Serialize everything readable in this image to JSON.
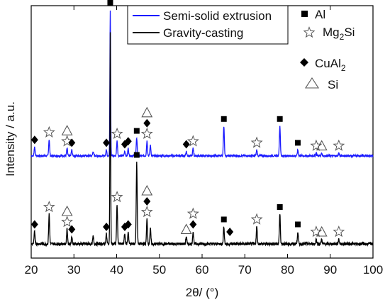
{
  "chart_data": {
    "type": "line",
    "xlabel": "2θ/ (°)",
    "ylabel": "Intensity / a.u.",
    "xlim": [
      20,
      100
    ],
    "xticks": [
      20,
      30,
      40,
      50,
      60,
      70,
      80,
      90,
      100
    ],
    "y_tick_labels": false,
    "grid": false,
    "legend": {
      "placement": "top-center",
      "entries": [
        {
          "name": "Semi-solid extrusion",
          "color": "#1a1aff"
        },
        {
          "name": "Gravity-casting",
          "color": "#000000"
        }
      ]
    },
    "phase_legend": {
      "placement": "top-right",
      "entries": [
        {
          "symbol": "filled-square",
          "label": "Al"
        },
        {
          "symbol": "open-star",
          "label": "Mg",
          "sub": "2",
          "label_after": "Si"
        },
        {
          "symbol": "filled-diamond",
          "label": "CuAl",
          "sub": "2",
          "label_after": ""
        },
        {
          "symbol": "open-triangle",
          "label": "Si"
        }
      ]
    },
    "series": [
      {
        "name": "Semi-solid extrusion",
        "color": "#1a1aff",
        "baseline": 0.02,
        "peaks": [
          {
            "x": 20.8,
            "h": 0.06
          },
          {
            "x": 24.2,
            "h": 0.11
          },
          {
            "x": 28.4,
            "h": 0.05
          },
          {
            "x": 29.5,
            "h": 0.04
          },
          {
            "x": 34.5,
            "h": 0.03
          },
          {
            "x": 37.6,
            "h": 0.04
          },
          {
            "x": 38.5,
            "h": 0.98
          },
          {
            "x": 40.1,
            "h": 0.1
          },
          {
            "x": 41.9,
            "h": 0.03
          },
          {
            "x": 42.7,
            "h": 0.05
          },
          {
            "x": 44.7,
            "h": 0.12
          },
          {
            "x": 47.1,
            "h": 0.1
          },
          {
            "x": 47.9,
            "h": 0.07
          },
          {
            "x": 56.3,
            "h": 0.03
          },
          {
            "x": 57.9,
            "h": 0.05
          },
          {
            "x": 65.1,
            "h": 0.2
          },
          {
            "x": 72.8,
            "h": 0.04
          },
          {
            "x": 78.2,
            "h": 0.2
          },
          {
            "x": 82.4,
            "h": 0.04
          },
          {
            "x": 86.7,
            "h": 0.02
          },
          {
            "x": 88.0,
            "h": 0.02
          },
          {
            "x": 92.0,
            "h": 0.02
          }
        ]
      },
      {
        "name": "Gravity-casting",
        "color": "#000000",
        "baseline": 0.02,
        "peaks": [
          {
            "x": 20.8,
            "h": 0.05
          },
          {
            "x": 24.2,
            "h": 0.12
          },
          {
            "x": 28.4,
            "h": 0.06
          },
          {
            "x": 29.5,
            "h": 0.03
          },
          {
            "x": 34.5,
            "h": 0.03
          },
          {
            "x": 37.6,
            "h": 0.04
          },
          {
            "x": 38.5,
            "h": 0.85
          },
          {
            "x": 40.1,
            "h": 0.16
          },
          {
            "x": 41.9,
            "h": 0.04
          },
          {
            "x": 42.7,
            "h": 0.05
          },
          {
            "x": 44.7,
            "h": 0.33
          },
          {
            "x": 47.1,
            "h": 0.1
          },
          {
            "x": 47.9,
            "h": 0.06
          },
          {
            "x": 56.3,
            "h": 0.03
          },
          {
            "x": 57.9,
            "h": 0.05
          },
          {
            "x": 65.1,
            "h": 0.07
          },
          {
            "x": 72.8,
            "h": 0.07
          },
          {
            "x": 78.2,
            "h": 0.12
          },
          {
            "x": 82.4,
            "h": 0.05
          },
          {
            "x": 86.7,
            "h": 0.02
          },
          {
            "x": 88.0,
            "h": 0.02
          },
          {
            "x": 92.0,
            "h": 0.02
          }
        ]
      }
    ],
    "peak_markers": [
      {
        "series": "Semi-solid extrusion",
        "x": 20.8,
        "symbols": [
          "filled-diamond"
        ]
      },
      {
        "series": "Semi-solid extrusion",
        "x": 24.2,
        "symbols": [
          "open-star"
        ]
      },
      {
        "series": "Semi-solid extrusion",
        "x": 28.4,
        "symbols": [
          "open-star",
          "open-triangle"
        ]
      },
      {
        "series": "Semi-solid extrusion",
        "x": 29.5,
        "symbols": [
          "filled-diamond"
        ]
      },
      {
        "series": "Semi-solid extrusion",
        "x": 37.6,
        "symbols": [
          "filled-diamond"
        ]
      },
      {
        "series": "Semi-solid extrusion",
        "x": 38.5,
        "symbols": [
          "filled-square"
        ]
      },
      {
        "series": "Semi-solid extrusion",
        "x": 40.1,
        "symbols": [
          "open-star"
        ]
      },
      {
        "series": "Semi-solid extrusion",
        "x": 41.9,
        "symbols": [
          "filled-diamond"
        ]
      },
      {
        "series": "Semi-solid extrusion",
        "x": 42.7,
        "symbols": [
          "filled-diamond"
        ]
      },
      {
        "series": "Semi-solid extrusion",
        "x": 44.7,
        "symbols": [
          "filled-square"
        ]
      },
      {
        "series": "Semi-solid extrusion",
        "x": 47.1,
        "symbols": [
          "open-star",
          "filled-diamond",
          "open-triangle"
        ]
      },
      {
        "series": "Semi-solid extrusion",
        "x": 56.3,
        "symbols": [
          "filled-diamond"
        ]
      },
      {
        "series": "Semi-solid extrusion",
        "x": 57.9,
        "symbols": [
          "open-star"
        ]
      },
      {
        "series": "Semi-solid extrusion",
        "x": 65.1,
        "symbols": [
          "filled-square"
        ]
      },
      {
        "series": "Semi-solid extrusion",
        "x": 72.8,
        "symbols": [
          "open-star"
        ]
      },
      {
        "series": "Semi-solid extrusion",
        "x": 78.2,
        "symbols": [
          "filled-square"
        ]
      },
      {
        "series": "Semi-solid extrusion",
        "x": 82.4,
        "symbols": [
          "filled-square"
        ]
      },
      {
        "series": "Semi-solid extrusion",
        "x": 86.7,
        "symbols": [
          "open-star"
        ]
      },
      {
        "series": "Semi-solid extrusion",
        "x": 88.0,
        "symbols": [
          "open-triangle"
        ]
      },
      {
        "series": "Semi-solid extrusion",
        "x": 92.0,
        "symbols": [
          "open-star"
        ]
      },
      {
        "series": "Gravity-casting",
        "x": 20.8,
        "symbols": [
          "filled-diamond"
        ]
      },
      {
        "series": "Gravity-casting",
        "x": 24.2,
        "symbols": [
          "open-star"
        ]
      },
      {
        "series": "Gravity-casting",
        "x": 28.4,
        "symbols": [
          "open-star",
          "open-triangle"
        ]
      },
      {
        "series": "Gravity-casting",
        "x": 29.5,
        "symbols": [
          "filled-diamond"
        ]
      },
      {
        "series": "Gravity-casting",
        "x": 37.6,
        "symbols": [
          "filled-diamond"
        ]
      },
      {
        "series": "Gravity-casting",
        "x": 40.1,
        "symbols": [
          "open-star"
        ]
      },
      {
        "series": "Gravity-casting",
        "x": 41.9,
        "symbols": [
          "filled-diamond"
        ]
      },
      {
        "series": "Gravity-casting",
        "x": 42.7,
        "symbols": [
          "filled-diamond"
        ]
      },
      {
        "series": "Gravity-casting",
        "x": 44.7,
        "symbols": [
          "filled-square"
        ]
      },
      {
        "series": "Gravity-casting",
        "x": 47.1,
        "symbols": [
          "open-star",
          "filled-diamond",
          "open-triangle"
        ]
      },
      {
        "series": "Gravity-casting",
        "x": 56.3,
        "symbols": [
          "open-triangle"
        ]
      },
      {
        "series": "Gravity-casting",
        "x": 57.9,
        "symbols": [
          "filled-diamond",
          "open-star"
        ]
      },
      {
        "series": "Gravity-casting",
        "x": 65.1,
        "symbols": [
          "filled-square"
        ]
      },
      {
        "series": "Gravity-casting",
        "x": 66.5,
        "symbols": [
          "filled-diamond"
        ]
      },
      {
        "series": "Gravity-casting",
        "x": 72.8,
        "symbols": [
          "open-star"
        ]
      },
      {
        "series": "Gravity-casting",
        "x": 78.2,
        "symbols": [
          "filled-square"
        ]
      },
      {
        "series": "Gravity-casting",
        "x": 82.4,
        "symbols": [
          "filled-square"
        ]
      },
      {
        "series": "Gravity-casting",
        "x": 86.7,
        "symbols": [
          "open-star"
        ]
      },
      {
        "series": "Gravity-casting",
        "x": 88.0,
        "symbols": [
          "open-triangle"
        ]
      },
      {
        "series": "Gravity-casting",
        "x": 92.0,
        "symbols": [
          "open-star"
        ]
      }
    ]
  }
}
